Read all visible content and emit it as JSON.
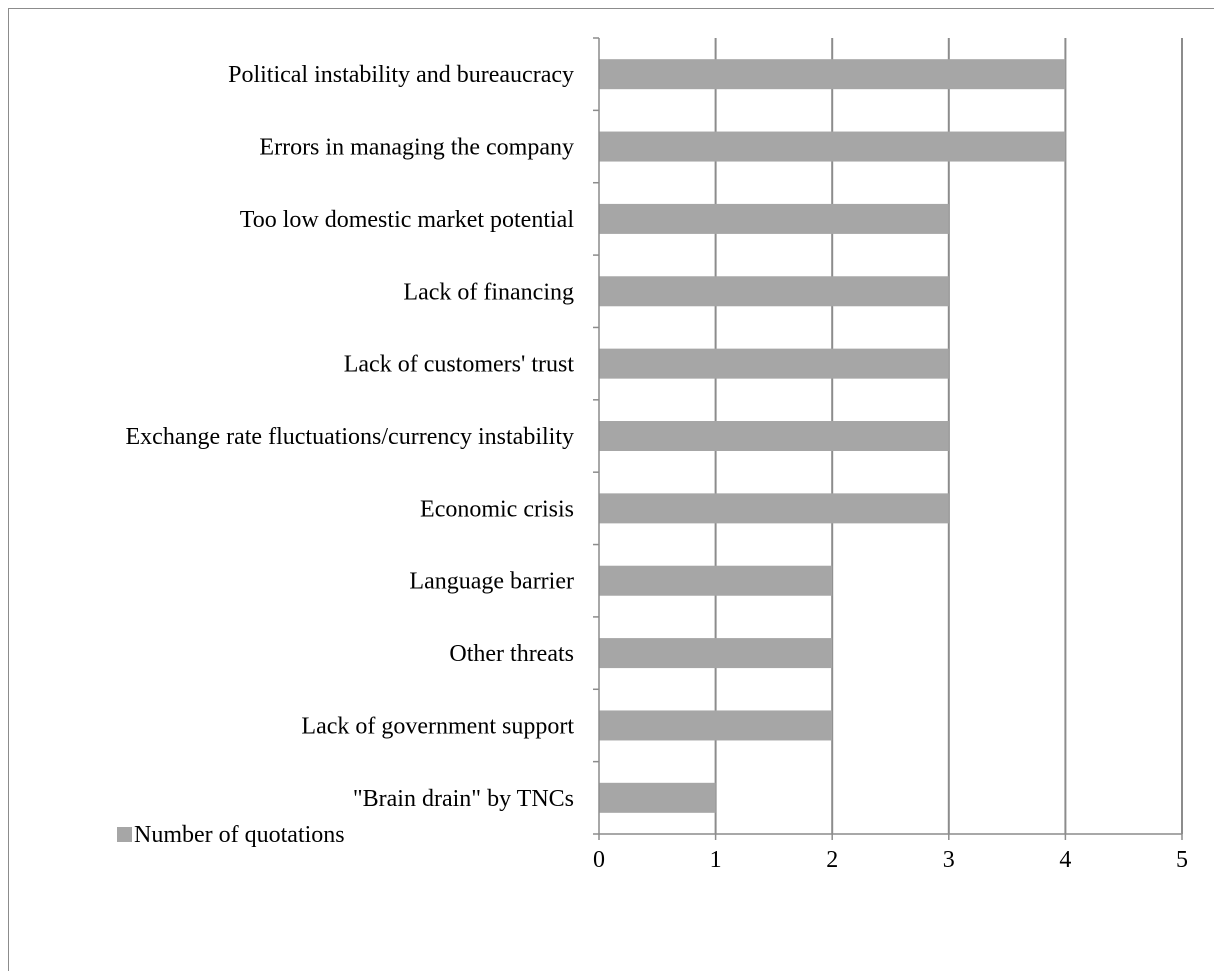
{
  "chart_data": {
    "type": "bar",
    "orientation": "horizontal",
    "categories": [
      "Political instability and bureaucracy",
      "Errors in managing the company",
      "Too low domestic market potential",
      "Lack of financing",
      "Lack of customers' trust",
      "Exchange rate fluctuations/currency instability",
      "Economic crisis",
      "Language barrier",
      "Other threats",
      "Lack of government support",
      "\"Brain drain\" by TNCs"
    ],
    "series": [
      {
        "name": "Number of quotations",
        "values": [
          4,
          4,
          3,
          3,
          3,
          3,
          3,
          2,
          2,
          2,
          1
        ]
      }
    ],
    "xlim": [
      0,
      5
    ],
    "xticks": [
      "0",
      "1",
      "2",
      "3",
      "4",
      "5"
    ],
    "grid": "vertical",
    "legend": "bottom-left",
    "colors": {
      "bar": "#a6a6a6",
      "grid": "#8c8c8c",
      "axis": "#8c8c8c",
      "text": "#000000"
    }
  }
}
